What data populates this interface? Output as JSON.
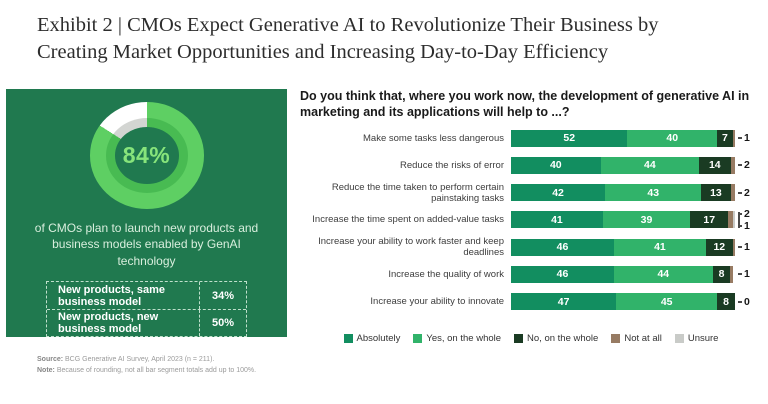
{
  "title": "Exhibit 2 | CMOs Expect Generative AI to Revolutionize Their Business by Creating Market Opportunities and Increasing Day-to-Day Efficiency",
  "left_panel": {
    "background_color": "#20794f",
    "donut": {
      "percent": 84,
      "label": "84%",
      "colors": {
        "filled_outer": "#5ecf63",
        "filled_inner": "#48bb52",
        "rest_outer": "#ffffff",
        "rest_inner": "#d3d5d2",
        "text": "#87e47b"
      }
    },
    "caption": "of CMOs plan to launch new products and business models enabled by GenAI technology",
    "table": [
      {
        "label": "New products, same business model",
        "value": "34%"
      },
      {
        "label": "New products, new business model",
        "value": "50%"
      }
    ]
  },
  "chart_data": {
    "type": "bar",
    "stacked": true,
    "orientation": "horizontal",
    "question": "Do you think that, where you work now, the development of generative AI in marketing and its applications will help to ...?",
    "xlim": [
      0,
      100
    ],
    "legend_position": "bottom",
    "legend": [
      "Absolutely",
      "Yes, on the whole",
      "No, on the whole",
      "Not at all",
      "Unsure"
    ],
    "colors": {
      "absolutely": "#128e60",
      "yes_on_the_whole": "#31b36a",
      "no_on_the_whole": "#1a3b23",
      "not_at_all": "#977b63",
      "unsure": "#c9cbc8"
    },
    "rows": [
      {
        "label": "Make some tasks less dangerous",
        "values": [
          52,
          40,
          7,
          1,
          0
        ],
        "outside_labels": [
          "1"
        ]
      },
      {
        "label": "Reduce the risks of error",
        "values": [
          40,
          44,
          14,
          2,
          0
        ],
        "outside_labels": [
          "2"
        ]
      },
      {
        "label": "Reduce the time taken to perform certain painstaking tasks",
        "values": [
          42,
          43,
          13,
          2,
          0
        ],
        "outside_labels": [
          "2"
        ]
      },
      {
        "label": "Increase the time spent on added-value tasks",
        "values": [
          41,
          39,
          17,
          2,
          1
        ],
        "outside_labels": [
          "2",
          "1"
        ]
      },
      {
        "label": "Increase your ability to work faster and keep deadlines",
        "values": [
          46,
          41,
          12,
          1,
          0
        ],
        "outside_labels": [
          "1"
        ]
      },
      {
        "label": "Increase the quality of work",
        "values": [
          46,
          44,
          8,
          1,
          0
        ],
        "outside_labels": [
          "1"
        ]
      },
      {
        "label": "Increase your ability to innovate",
        "values": [
          47,
          45,
          8,
          0,
          0
        ],
        "outside_labels": [
          "0"
        ]
      }
    ]
  },
  "footer": {
    "source_label": "Source:",
    "source_text": " BCG Generative AI Survey, April 2023 (n = 211).",
    "note_label": "Note:",
    "note_text": " Because of rounding, not all bar segment totals add up to 100%."
  }
}
